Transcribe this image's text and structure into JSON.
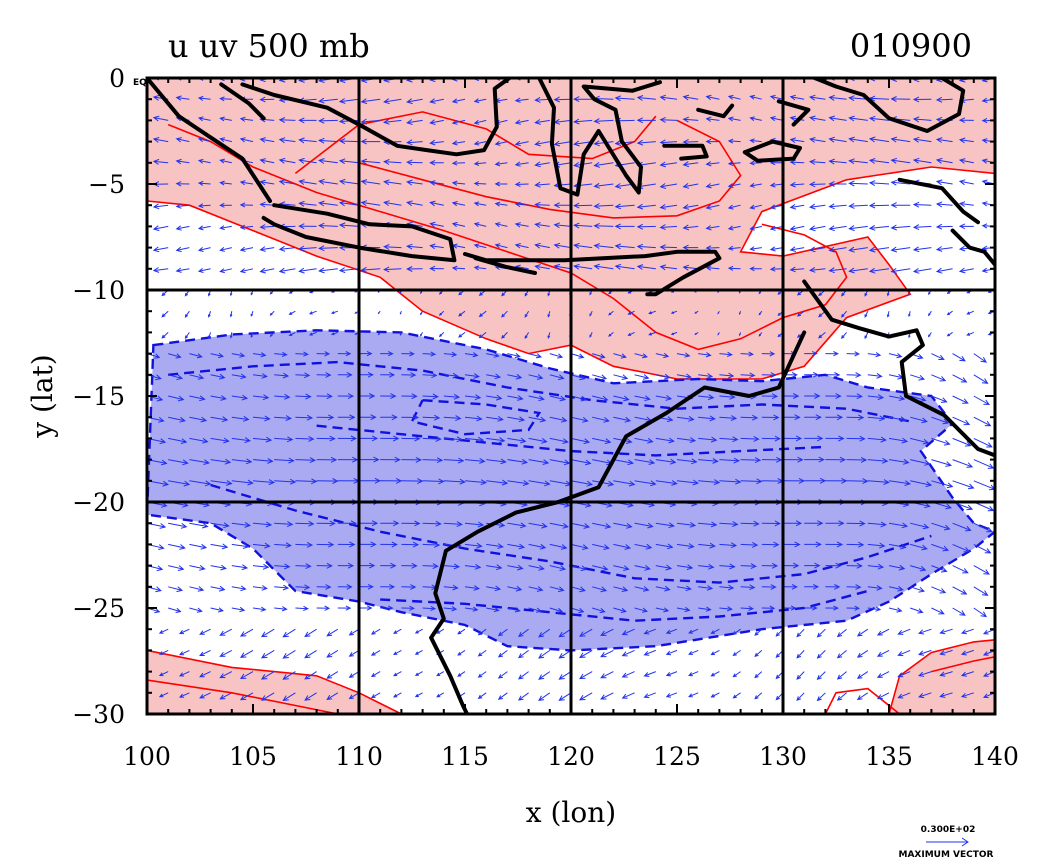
{
  "chart_data": {
    "type": "contour-vector-map",
    "title_left": "u uv 500 mb",
    "title_right": "010900",
    "xlabel": "x (lon)",
    "ylabel": "y (lat)",
    "xlim": [
      100,
      140
    ],
    "ylim": [
      -30,
      0
    ],
    "x_ticks": [
      100,
      105,
      110,
      115,
      120,
      125,
      130,
      135,
      140
    ],
    "x_tick_labels": [
      "100",
      "105",
      "110",
      "115",
      "120",
      "125",
      "130",
      "135",
      "140"
    ],
    "y_ticks": [
      0,
      -5,
      -10,
      -15,
      -20,
      -25,
      -30
    ],
    "y_tick_labels": [
      "0",
      "−5",
      "−10",
      "−15",
      "−20",
      "−25",
      "−30"
    ],
    "equator_label": "EQ",
    "grid_lines_x": [
      110,
      120,
      130
    ],
    "grid_lines_y": [
      -10,
      -20
    ],
    "vector_key_value": "0.300E+02",
    "vector_key_label": "MAXIMUM VECTOR",
    "colors": {
      "positive_fill": "#f7c3c3",
      "positive_contour": "#ff0000",
      "negative_fill": "#aaaaf2",
      "negative_contour": "#1010e0",
      "vectors": "#2233ee",
      "coastline": "#000000"
    },
    "regions": [
      {
        "sign": "positive",
        "points": [
          [
            100,
            0
          ],
          [
            140,
            0
          ],
          [
            140,
            -4.5
          ],
          [
            137,
            -4.2
          ],
          [
            133,
            -4.8
          ],
          [
            129,
            -6.3
          ],
          [
            128,
            -8.2
          ],
          [
            130,
            -8.4
          ],
          [
            134,
            -7.5
          ],
          [
            135,
            -8.8
          ],
          [
            136,
            -10.2
          ],
          [
            133,
            -11.3
          ],
          [
            131,
            -13.6
          ],
          [
            129,
            -14.2
          ],
          [
            125,
            -14.2
          ],
          [
            122,
            -13.6
          ],
          [
            120,
            -12.6
          ],
          [
            118,
            -13.0
          ],
          [
            116,
            -12.3
          ],
          [
            113,
            -11.0
          ],
          [
            111,
            -9.4
          ],
          [
            108,
            -8.4
          ],
          [
            105,
            -7.2
          ],
          [
            102,
            -6.0
          ],
          [
            100,
            -5.8
          ]
        ]
      },
      {
        "sign": "positive",
        "points": [
          [
            100,
            -27.0
          ],
          [
            104,
            -27.8
          ],
          [
            108,
            -28.2
          ],
          [
            110,
            -29.0
          ],
          [
            112,
            -30.0
          ],
          [
            100,
            -30.0
          ]
        ]
      },
      {
        "sign": "positive",
        "points": [
          [
            135,
            -30.0
          ],
          [
            135.5,
            -28.2
          ],
          [
            137,
            -27.1
          ],
          [
            139,
            -26.6
          ],
          [
            140,
            -26.5
          ],
          [
            140,
            -30.0
          ]
        ]
      },
      {
        "sign": "negative",
        "points": [
          [
            100.3,
            -12.6
          ],
          [
            104,
            -12.1
          ],
          [
            108,
            -11.9
          ],
          [
            112,
            -12.0
          ],
          [
            116,
            -12.8
          ],
          [
            119,
            -13.7
          ],
          [
            122,
            -14.4
          ],
          [
            126,
            -14.2
          ],
          [
            129,
            -14.3
          ],
          [
            132,
            -14.0
          ],
          [
            134,
            -14.6
          ],
          [
            137,
            -15.0
          ],
          [
            138,
            -16.3
          ],
          [
            136.5,
            -17.6
          ],
          [
            138,
            -19.8
          ],
          [
            139,
            -21.0
          ],
          [
            140,
            -21.4
          ],
          [
            139,
            -22.2
          ],
          [
            137,
            -23.4
          ],
          [
            135,
            -24.7
          ],
          [
            133,
            -25.6
          ],
          [
            129,
            -26.0
          ],
          [
            124,
            -26.8
          ],
          [
            120,
            -27.0
          ],
          [
            117,
            -26.8
          ],
          [
            115,
            -25.8
          ],
          [
            112,
            -25.2
          ],
          [
            110,
            -24.7
          ],
          [
            107,
            -24.2
          ],
          [
            105,
            -22.2
          ],
          [
            103,
            -21.0
          ],
          [
            100,
            -20.6
          ]
        ]
      }
    ],
    "contour_lines": [
      {
        "sign": "positive",
        "points": [
          [
            101,
            -2.2
          ],
          [
            103,
            -3.0
          ],
          [
            105,
            -4.2
          ],
          [
            108,
            -5.4
          ],
          [
            111,
            -6.3
          ],
          [
            114,
            -7.2
          ],
          [
            117,
            -8.2
          ],
          [
            120,
            -9.2
          ],
          [
            122,
            -10.4
          ],
          [
            124,
            -12.0
          ],
          [
            126,
            -12.8
          ],
          [
            128,
            -12.3
          ],
          [
            130,
            -11.3
          ],
          [
            132,
            -10.7
          ],
          [
            133,
            -9.4
          ],
          [
            132.5,
            -8.2
          ],
          [
            131,
            -7.4
          ],
          [
            129,
            -6.9
          ]
        ]
      },
      {
        "sign": "positive",
        "points": [
          [
            110,
            -4.0
          ],
          [
            113,
            -4.8
          ],
          [
            116,
            -5.6
          ],
          [
            119,
            -6.2
          ],
          [
            122,
            -6.6
          ],
          [
            125,
            -6.5
          ],
          [
            127,
            -5.8
          ],
          [
            128,
            -4.6
          ],
          [
            127,
            -3.0
          ],
          [
            125,
            -2.0
          ]
        ]
      },
      {
        "sign": "positive",
        "points": [
          [
            107,
            -4.5
          ],
          [
            110,
            -2.2
          ],
          [
            113,
            -1.6
          ],
          [
            116,
            -2.4
          ],
          [
            118,
            -3.6
          ],
          [
            121,
            -3.8
          ],
          [
            123,
            -3.0
          ],
          [
            124,
            -1.8
          ]
        ]
      },
      {
        "sign": "positive",
        "points": [
          [
            100,
            -28.4
          ],
          [
            104,
            -29.0
          ],
          [
            107,
            -29.6
          ],
          [
            109,
            -30.0
          ]
        ]
      },
      {
        "sign": "positive",
        "points": [
          [
            132,
            -30.0
          ],
          [
            132.5,
            -29.0
          ],
          [
            134,
            -28.8
          ],
          [
            135.5,
            -30.0
          ]
        ]
      },
      {
        "sign": "positive",
        "points": [
          [
            137,
            -28.0
          ],
          [
            139,
            -27.5
          ],
          [
            140,
            -27.3
          ]
        ]
      },
      {
        "sign": "negative",
        "points": [
          [
            101,
            -14.0
          ],
          [
            105,
            -13.6
          ],
          [
            109,
            -13.4
          ],
          [
            113,
            -13.8
          ],
          [
            117,
            -14.6
          ],
          [
            121,
            -15.2
          ],
          [
            125,
            -15.6
          ],
          [
            129,
            -15.4
          ],
          [
            133,
            -15.6
          ],
          [
            136,
            -16.2
          ]
        ]
      },
      {
        "sign": "negative",
        "points": [
          [
            103,
            -19.2
          ],
          [
            107,
            -20.4
          ],
          [
            111,
            -21.4
          ],
          [
            115,
            -22.2
          ],
          [
            119,
            -22.8
          ],
          [
            123,
            -23.6
          ],
          [
            127,
            -23.8
          ],
          [
            131,
            -23.4
          ],
          [
            134,
            -22.6
          ],
          [
            137,
            -21.6
          ]
        ]
      },
      {
        "sign": "negative",
        "points": [
          [
            108,
            -16.4
          ],
          [
            112,
            -16.8
          ],
          [
            116,
            -17.2
          ],
          [
            120,
            -17.6
          ],
          [
            124,
            -17.8
          ],
          [
            128,
            -17.6
          ],
          [
            132,
            -17.4
          ]
        ]
      },
      {
        "sign": "negative",
        "points": [
          [
            111,
            -24.6
          ],
          [
            115,
            -24.8
          ],
          [
            119,
            -25.2
          ],
          [
            123,
            -25.6
          ],
          [
            127,
            -25.4
          ],
          [
            131,
            -25.0
          ],
          [
            134,
            -24.2
          ]
        ]
      },
      {
        "sign": "negative",
        "points": [
          [
            113,
            -15.2
          ],
          [
            116,
            -15.4
          ],
          [
            118.5,
            -15.8
          ],
          [
            118,
            -16.6
          ],
          [
            115,
            -16.8
          ],
          [
            112.5,
            -16.2
          ],
          [
            113,
            -15.2
          ]
        ]
      }
    ],
    "coastlines": [
      [
        [
          100,
          0
        ],
        [
          101.5,
          -1.8
        ],
        [
          103,
          -2.8
        ],
        [
          104.5,
          -3.8
        ],
        [
          105.8,
          -5.8
        ]
      ],
      [
        [
          103.5,
          -0.3
        ],
        [
          104.8,
          -1.2
        ],
        [
          105.5,
          -1.9
        ]
      ],
      [
        [
          106,
          -6.0
        ],
        [
          108.5,
          -6.4
        ],
        [
          110.5,
          -6.9
        ],
        [
          112.5,
          -7.0
        ],
        [
          114.3,
          -7.6
        ],
        [
          114.5,
          -8.6
        ],
        [
          112.5,
          -8.4
        ],
        [
          110,
          -8.0
        ],
        [
          107.5,
          -7.5
        ],
        [
          106,
          -6.9
        ],
        [
          105.5,
          -6.6
        ]
      ],
      [
        [
          104.5,
          -0.3
        ],
        [
          106,
          -0.8
        ],
        [
          108.5,
          -1.4
        ],
        [
          110.2,
          -2.3
        ],
        [
          111.8,
          -3.2
        ],
        [
          113.2,
          -3.4
        ],
        [
          114.6,
          -3.6
        ],
        [
          115.9,
          -3.4
        ],
        [
          116.5,
          -2.3
        ],
        [
          116.4,
          -0.5
        ],
        [
          117.1,
          0
        ]
      ],
      [
        [
          118.5,
          0
        ],
        [
          119.2,
          -1.4
        ],
        [
          119.1,
          -3.1
        ],
        [
          119.5,
          -5.2
        ],
        [
          120.3,
          -5.5
        ],
        [
          120.6,
          -3.6
        ],
        [
          121.3,
          -2.5
        ],
        [
          122.6,
          -4.6
        ],
        [
          123.2,
          -5.4
        ],
        [
          123.3,
          -4.2
        ],
        [
          122.4,
          -3.0
        ],
        [
          122.1,
          -1.5
        ],
        [
          121.1,
          -1.0
        ],
        [
          120.6,
          -0.4
        ],
        [
          122.9,
          -0.6
        ],
        [
          124.2,
          -0.2
        ]
      ],
      [
        [
          124.4,
          -3.2
        ],
        [
          126.2,
          -3.2
        ],
        [
          126.4,
          -3.7
        ],
        [
          125.2,
          -3.8
        ]
      ],
      [
        [
          126,
          -1.5
        ],
        [
          127.2,
          -1.8
        ],
        [
          127.6,
          -1.3
        ]
      ],
      [
        [
          128.2,
          -3.5
        ],
        [
          129.5,
          -3.0
        ],
        [
          130.8,
          -3.3
        ],
        [
          130.5,
          -3.8
        ],
        [
          128.8,
          -3.9
        ],
        [
          128.2,
          -3.5
        ]
      ],
      [
        [
          131.5,
          0
        ],
        [
          132.5,
          -0.4
        ],
        [
          133.8,
          -0.8
        ],
        [
          135,
          -1.9
        ],
        [
          136.8,
          -2.5
        ],
        [
          138.3,
          -1.7
        ],
        [
          138.5,
          -0.6
        ],
        [
          137.5,
          0
        ]
      ],
      [
        [
          138,
          -7.2
        ],
        [
          138.8,
          -8.0
        ],
        [
          139.5,
          -8.2
        ],
        [
          140,
          -8.8
        ]
      ],
      [
        [
          135.5,
          -4.8
        ],
        [
          137.5,
          -5.2
        ],
        [
          138.5,
          -6.3
        ],
        [
          139.2,
          -6.8
        ]
      ],
      [
        [
          131,
          -9.6
        ],
        [
          132.3,
          -11.4
        ],
        [
          133.6,
          -11.8
        ],
        [
          135,
          -12.2
        ],
        [
          136.3,
          -11.9
        ],
        [
          136.6,
          -12.6
        ],
        [
          135.6,
          -13.4
        ],
        [
          135.8,
          -15.0
        ],
        [
          137.6,
          -15.9
        ],
        [
          139.2,
          -17.5
        ],
        [
          140,
          -17.8
        ]
      ],
      [
        [
          131,
          -12.0
        ],
        [
          129.8,
          -14.6
        ],
        [
          128.4,
          -15.0
        ],
        [
          126.3,
          -14.6
        ],
        [
          124.5,
          -15.8
        ],
        [
          122.6,
          -16.9
        ],
        [
          121.3,
          -19.3
        ],
        [
          119.4,
          -20.0
        ],
        [
          117.4,
          -20.5
        ],
        [
          115.6,
          -21.4
        ],
        [
          114.1,
          -22.3
        ],
        [
          113.6,
          -24.3
        ],
        [
          114,
          -25.5
        ],
        [
          113.4,
          -26.4
        ],
        [
          114.3,
          -28.2
        ],
        [
          114.9,
          -29.6
        ],
        [
          115.1,
          -30.0
        ]
      ],
      [
        [
          115,
          -8.3
        ],
        [
          116,
          -8.6
        ],
        [
          118,
          -8.6
        ],
        [
          119.7,
          -8.6
        ],
        [
          121.5,
          -8.5
        ],
        [
          123.5,
          -8.4
        ],
        [
          125,
          -8.2
        ],
        [
          126.8,
          -8.2
        ],
        [
          127,
          -8.5
        ],
        [
          125.3,
          -9.4
        ],
        [
          124,
          -10.2
        ],
        [
          123.6,
          -10.2
        ]
      ],
      [
        [
          115.5,
          -8.5
        ],
        [
          116.9,
          -8.9
        ],
        [
          118.3,
          -9.2
        ]
      ],
      [
        [
          129.8,
          -1.1
        ],
        [
          131.2,
          -1.5
        ],
        [
          130.5,
          -2.2
        ]
      ]
    ]
  }
}
